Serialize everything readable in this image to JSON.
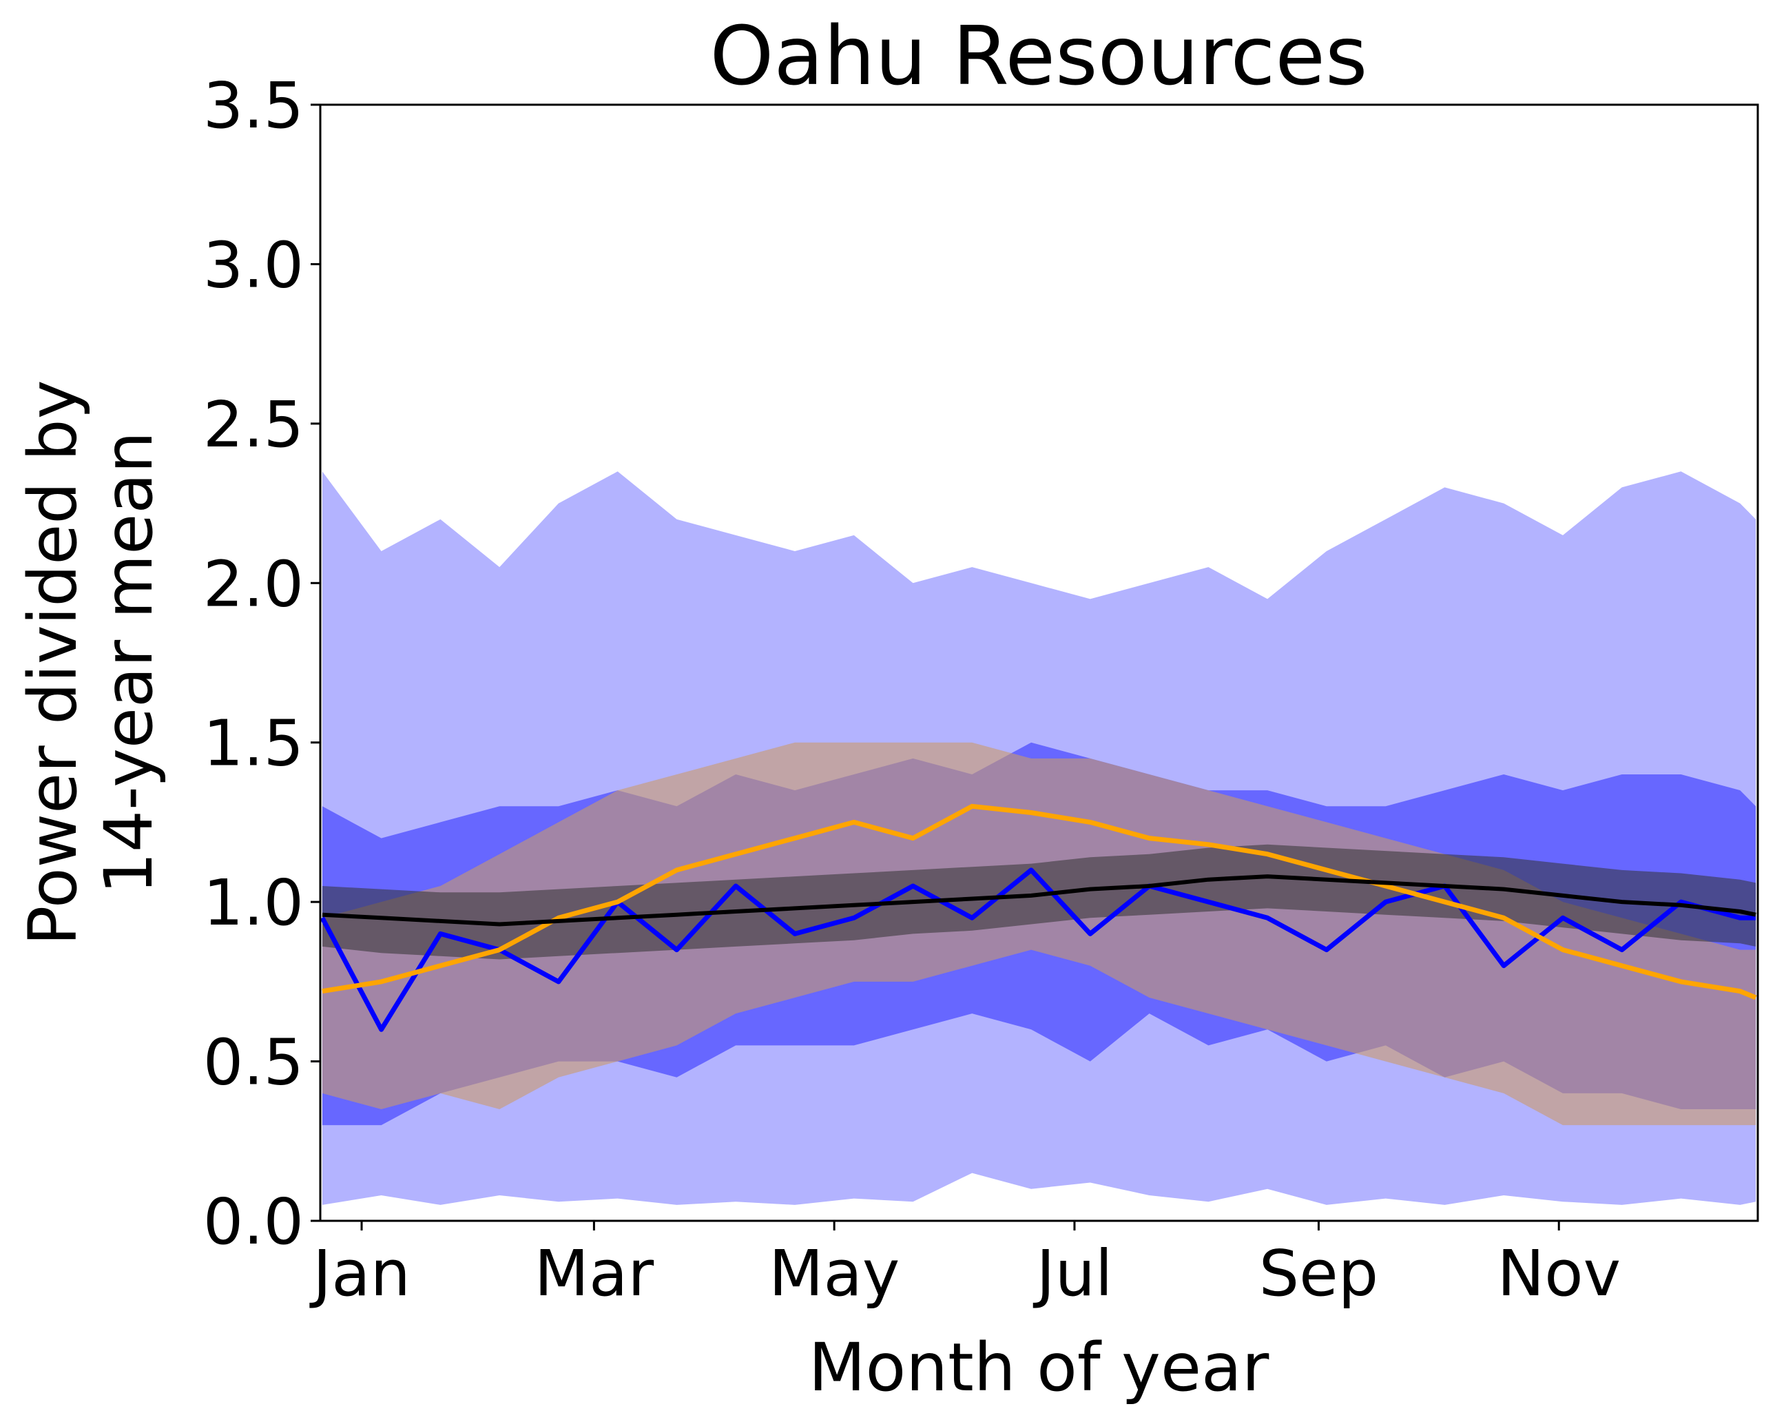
{
  "chart_data": {
    "type": "area",
    "title": "Oahu Resources",
    "xlabel": "Month of year",
    "ylabel_line1": "Power divided by",
    "ylabel_line2": "14-year mean",
    "xlim": [
      0.5,
      365.5
    ],
    "ylim": [
      0,
      3.5
    ],
    "grid": false,
    "legend": "none",
    "x_ticks": [
      {
        "day": 11,
        "label": "Jan"
      },
      {
        "day": 70,
        "label": "Mar"
      },
      {
        "day": 131,
        "label": "May"
      },
      {
        "day": 192,
        "label": "Jul"
      },
      {
        "day": 254,
        "label": "Sep"
      },
      {
        "day": 315,
        "label": "Nov"
      }
    ],
    "y_ticks": [
      0.0,
      0.5,
      1.0,
      1.5,
      2.0,
      2.5,
      3.0,
      3.5
    ],
    "y_tick_labels": [
      "0.0",
      "0.5",
      "1.0",
      "1.5",
      "2.0",
      "2.5",
      "3.0",
      "3.5"
    ],
    "colors": {
      "wind": "#0000ff",
      "wind_outer": "#b3b3ff",
      "wind_inner": "#5959ff",
      "solar": "#ffa500",
      "solar_band": "#c99a6b",
      "load": "#000000",
      "load_band": "#333333"
    },
    "series": [
      {
        "role": "wind",
        "x": [
          1,
          16,
          31,
          46,
          61,
          76,
          91,
          106,
          121,
          136,
          151,
          166,
          181,
          196,
          211,
          226,
          241,
          256,
          271,
          286,
          301,
          316,
          331,
          346,
          361,
          365
        ],
        "median": [
          0.95,
          0.6,
          0.9,
          0.85,
          0.75,
          1.0,
          0.85,
          1.05,
          0.9,
          0.95,
          1.05,
          0.95,
          1.1,
          0.9,
          1.05,
          1.0,
          0.95,
          0.85,
          1.0,
          1.05,
          0.8,
          0.95,
          0.85,
          1.0,
          0.95,
          0.95
        ],
        "p5": [
          0.05,
          0.08,
          0.05,
          0.08,
          0.06,
          0.07,
          0.05,
          0.06,
          0.05,
          0.07,
          0.06,
          0.15,
          0.1,
          0.12,
          0.08,
          0.06,
          0.1,
          0.05,
          0.07,
          0.05,
          0.08,
          0.06,
          0.05,
          0.07,
          0.05,
          0.06
        ],
        "p25": [
          0.3,
          0.3,
          0.4,
          0.45,
          0.5,
          0.5,
          0.45,
          0.55,
          0.55,
          0.55,
          0.6,
          0.65,
          0.6,
          0.5,
          0.65,
          0.55,
          0.6,
          0.5,
          0.55,
          0.45,
          0.5,
          0.4,
          0.4,
          0.35,
          0.35,
          0.35
        ],
        "p75": [
          1.3,
          1.2,
          1.25,
          1.3,
          1.3,
          1.35,
          1.3,
          1.4,
          1.35,
          1.4,
          1.45,
          1.4,
          1.5,
          1.45,
          1.4,
          1.35,
          1.35,
          1.3,
          1.3,
          1.35,
          1.4,
          1.35,
          1.4,
          1.4,
          1.35,
          1.3
        ],
        "p95": [
          2.35,
          2.1,
          2.2,
          2.05,
          2.25,
          2.35,
          2.2,
          2.15,
          2.1,
          2.15,
          2.0,
          2.05,
          2.0,
          1.95,
          2.0,
          2.05,
          1.95,
          2.1,
          2.2,
          2.3,
          2.25,
          2.15,
          2.3,
          2.35,
          2.25,
          2.2
        ]
      },
      {
        "role": "solar",
        "x": [
          1,
          16,
          31,
          46,
          61,
          76,
          91,
          106,
          121,
          136,
          151,
          166,
          181,
          196,
          211,
          226,
          241,
          256,
          271,
          286,
          301,
          316,
          331,
          346,
          361,
          365
        ],
        "median": [
          0.72,
          0.75,
          0.8,
          0.85,
          0.95,
          1.0,
          1.1,
          1.15,
          1.2,
          1.25,
          1.2,
          1.3,
          1.28,
          1.25,
          1.2,
          1.18,
          1.15,
          1.1,
          1.05,
          1.0,
          0.95,
          0.85,
          0.8,
          0.75,
          0.72,
          0.7
        ],
        "p5": [
          0.4,
          0.35,
          0.4,
          0.35,
          0.45,
          0.5,
          0.55,
          0.65,
          0.7,
          0.75,
          0.75,
          0.8,
          0.85,
          0.8,
          0.7,
          0.65,
          0.6,
          0.55,
          0.5,
          0.45,
          0.4,
          0.3,
          0.3,
          0.3,
          0.3,
          0.3
        ],
        "p95": [
          0.95,
          1.0,
          1.05,
          1.15,
          1.25,
          1.35,
          1.4,
          1.45,
          1.5,
          1.5,
          1.5,
          1.5,
          1.45,
          1.45,
          1.4,
          1.35,
          1.3,
          1.25,
          1.2,
          1.15,
          1.1,
          1.0,
          0.95,
          0.9,
          0.85,
          0.85
        ]
      },
      {
        "role": "load",
        "x": [
          1,
          16,
          31,
          46,
          61,
          76,
          91,
          106,
          121,
          136,
          151,
          166,
          181,
          196,
          211,
          226,
          241,
          256,
          271,
          286,
          301,
          316,
          331,
          346,
          361,
          365
        ],
        "median": [
          0.96,
          0.95,
          0.94,
          0.93,
          0.94,
          0.95,
          0.96,
          0.97,
          0.98,
          0.99,
          1.0,
          1.01,
          1.02,
          1.04,
          1.05,
          1.07,
          1.08,
          1.07,
          1.06,
          1.05,
          1.04,
          1.02,
          1.0,
          0.99,
          0.97,
          0.96
        ],
        "p5": [
          0.86,
          0.84,
          0.83,
          0.82,
          0.83,
          0.84,
          0.85,
          0.86,
          0.87,
          0.88,
          0.9,
          0.91,
          0.93,
          0.95,
          0.96,
          0.97,
          0.98,
          0.97,
          0.96,
          0.95,
          0.94,
          0.92,
          0.9,
          0.88,
          0.87,
          0.86
        ],
        "p95": [
          1.05,
          1.04,
          1.03,
          1.03,
          1.04,
          1.05,
          1.06,
          1.07,
          1.08,
          1.09,
          1.1,
          1.11,
          1.12,
          1.14,
          1.15,
          1.17,
          1.18,
          1.17,
          1.16,
          1.15,
          1.14,
          1.12,
          1.1,
          1.09,
          1.07,
          1.06
        ]
      }
    ]
  }
}
